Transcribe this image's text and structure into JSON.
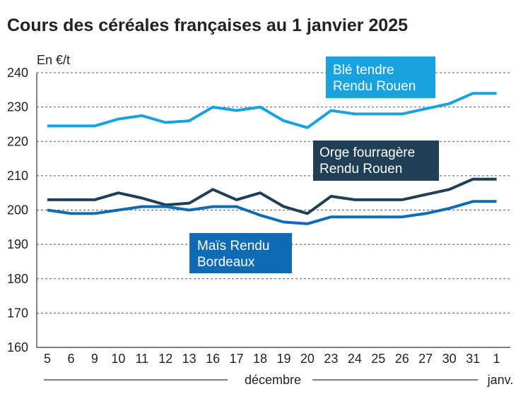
{
  "title": "Cours des céréales françaises au 1 janvier 2025",
  "chart_data": {
    "type": "line",
    "title": "Cours des céréales françaises au 1 janvier 2025",
    "ylabel": "En €/t",
    "xlabel": "",
    "ylim": [
      160,
      240
    ],
    "yticks": [
      160,
      170,
      180,
      190,
      200,
      210,
      220,
      230,
      240
    ],
    "categories": [
      "5",
      "6",
      "9",
      "10",
      "11",
      "12",
      "13",
      "16",
      "17",
      "18",
      "19",
      "20",
      "23",
      "24",
      "25",
      "26",
      "27",
      "30",
      "31",
      "1"
    ],
    "month_labels": [
      "décembre",
      "janv."
    ],
    "grid": true,
    "series": [
      {
        "name": "Blé tendre Rendu Rouen",
        "label_lines": [
          "Blé tendre",
          "Rendu Rouen"
        ],
        "color": "#18a3de",
        "values": [
          224.5,
          224.5,
          224.5,
          226.5,
          227.5,
          225.5,
          226,
          230,
          229,
          230,
          226,
          224,
          229,
          228,
          228,
          228,
          229.5,
          231,
          234,
          234
        ]
      },
      {
        "name": "Orge fourragère Rendu Rouen",
        "label_lines": [
          "Orge fourragère",
          "Rendu Rouen"
        ],
        "color": "#1f3f56",
        "values": [
          203,
          203,
          203,
          205,
          203.5,
          201.5,
          202,
          206,
          203,
          205,
          201,
          199,
          204,
          203,
          203,
          203,
          204.5,
          206,
          209,
          209
        ]
      },
      {
        "name": "Maïs Rendu Bordeaux",
        "label_lines": [
          "Maïs Rendu",
          "Bordeaux"
        ],
        "color": "#0f6cb4",
        "values": [
          200,
          199,
          199,
          200,
          201,
          201,
          200,
          201,
          201,
          198.5,
          196.5,
          196,
          198,
          198,
          198,
          198,
          199,
          200.5,
          202.5,
          202.5
        ]
      }
    ]
  }
}
